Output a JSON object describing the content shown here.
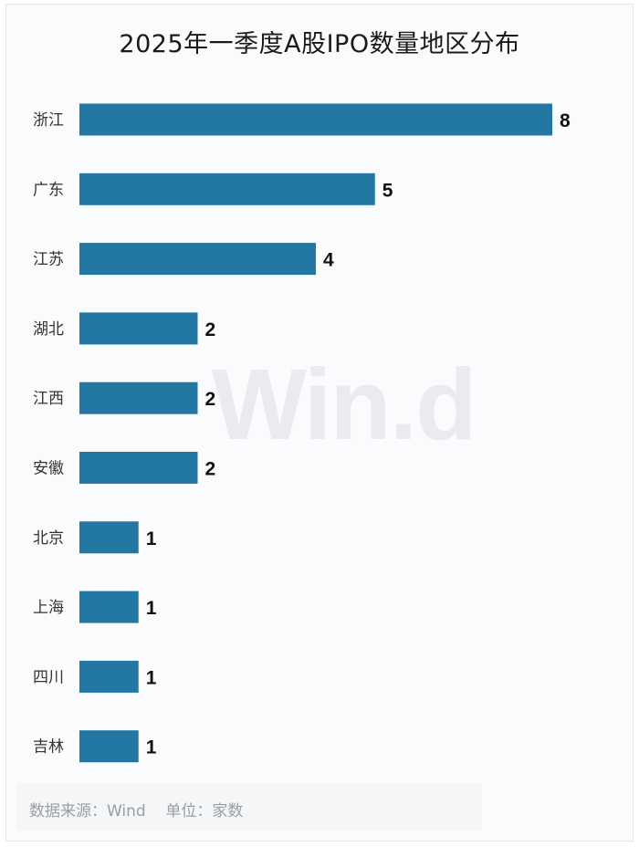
{
  "chart_data": {
    "type": "bar",
    "orientation": "horizontal",
    "title": "2025年一季度A股IPO数量地区分布",
    "categories": [
      "浙江",
      "广东",
      "江苏",
      "湖北",
      "江西",
      "安徽",
      "北京",
      "上海",
      "四川",
      "吉林"
    ],
    "values": [
      8,
      5,
      4,
      2,
      2,
      2,
      1,
      1,
      1,
      1
    ],
    "xlim": [
      0,
      8
    ],
    "grid": false,
    "bar_color": "#2277a3"
  },
  "watermark": "Win.d",
  "footer": {
    "source": "数据来源：Wind",
    "unit": "单位：家数"
  }
}
